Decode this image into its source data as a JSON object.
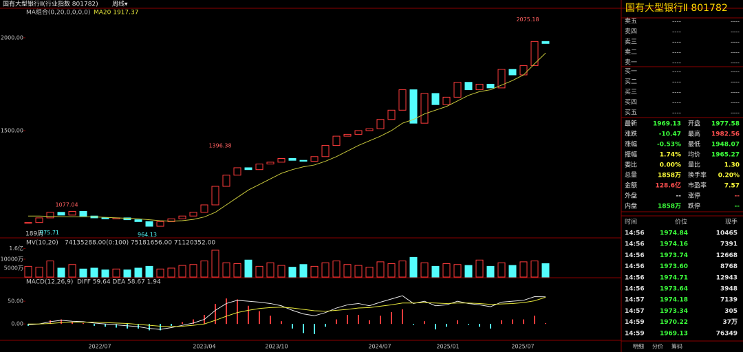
{
  "header": {
    "title": "国有大型银行Ⅱ(行业指数 801782)",
    "period": "周线▾"
  },
  "chart_data": [
    {
      "type": "candlestick",
      "legend": "MA组合(0,20,0,0,0,0)",
      "ma_label": "MA20 1917.37",
      "count_label": "189周",
      "close": [
        1005,
        1030,
        1060,
        1045,
        1065,
        1040,
        1030,
        1025,
        1030,
        1020,
        1010,
        985,
        1010,
        1025,
        1040,
        1060,
        1100,
        1200,
        1260,
        1300,
        1290,
        1320,
        1330,
        1350,
        1340,
        1335,
        1360,
        1420,
        1470,
        1480,
        1500,
        1510,
        1560,
        1610,
        1720,
        1540,
        1700,
        1640,
        1680,
        1760,
        1720,
        1750,
        1730,
        1830,
        1800,
        1850,
        1980,
        1969.13
      ],
      "ma20": [
        1040,
        1040,
        1038,
        1036,
        1035,
        1035,
        1035,
        1033,
        1030,
        1028,
        1025,
        1020,
        1015,
        1012,
        1015,
        1022,
        1035,
        1060,
        1100,
        1140,
        1180,
        1210,
        1240,
        1270,
        1290,
        1305,
        1315,
        1335,
        1360,
        1390,
        1420,
        1445,
        1470,
        1500,
        1540,
        1560,
        1590,
        1610,
        1630,
        1660,
        1690,
        1710,
        1720,
        1745,
        1770,
        1800,
        1860,
        1917.37
      ],
      "up_color": "#ff3c3c",
      "down_color": "#54fcfc",
      "ma_color": "#c8c83c",
      "ylim": [
        926,
        2159
      ],
      "yticks": [
        {
          "value": 2000,
          "label": "2000.00"
        },
        {
          "value": 1500,
          "label": "1500.00"
        }
      ],
      "annotations": [
        2075.18,
        1396.38,
        1077.04,
        975.71,
        964.13
      ]
    },
    {
      "type": "bar",
      "legend": "MV(10,20)",
      "stats": "74135288.00(0:100)  75181656.00  71120352.00",
      "values": [
        6000,
        5500,
        9000,
        5000,
        7000,
        4500,
        5000,
        4000,
        4500,
        4000,
        5000,
        6000,
        4500,
        5000,
        6500,
        7000,
        9000,
        15000,
        8000,
        7500,
        9500,
        6000,
        8000,
        6500,
        5500,
        7000,
        6000,
        8000,
        9000,
        7000,
        6500,
        5500,
        8500,
        7500,
        9000,
        11000,
        8000,
        6000,
        7500,
        7000,
        6500,
        9500,
        6000,
        8000,
        6500,
        8500,
        9000,
        7500
      ],
      "ylim": [
        0,
        21500
      ],
      "yticks": [
        {
          "value": 16000,
          "label": "1.6亿"
        },
        {
          "value": 10000,
          "label": "10000万"
        },
        {
          "value": 5000,
          "label": "5000万"
        }
      ]
    },
    {
      "type": "macd",
      "legend": "MACD(12,26,9)",
      "stats": "DIFF 59.64  DEA 58.67  1.94",
      "diff": [
        -2,
        0,
        5,
        8,
        6,
        5,
        2,
        0,
        -2,
        -4,
        -6,
        -10,
        -12,
        -8,
        -3,
        2,
        10,
        30,
        45,
        52,
        50,
        48,
        45,
        40,
        30,
        22,
        18,
        25,
        35,
        42,
        45,
        40,
        48,
        55,
        62,
        45,
        50,
        40,
        42,
        50,
        45,
        42,
        38,
        48,
        50,
        52,
        60,
        59.64
      ],
      "dea": [
        0,
        0,
        1,
        3,
        4,
        4,
        4,
        3,
        2,
        1,
        -1,
        -3,
        -5,
        -6,
        -5,
        -3,
        0,
        8,
        17,
        25,
        30,
        34,
        36,
        37,
        35,
        32,
        29,
        28,
        30,
        32,
        35,
        36,
        39,
        42,
        46,
        46,
        47,
        46,
        45,
        46,
        46,
        45,
        43,
        44,
        45,
        47,
        51,
        58.67
      ],
      "hist": [
        -4,
        0,
        8,
        10,
        4,
        2,
        -4,
        -6,
        -8,
        -10,
        -10,
        -14,
        -14,
        -4,
        4,
        10,
        20,
        44,
        56,
        54,
        40,
        28,
        18,
        6,
        -10,
        -20,
        -22,
        -6,
        10,
        20,
        20,
        8,
        18,
        26,
        32,
        -2,
        6,
        -12,
        -6,
        8,
        -2,
        -6,
        -10,
        8,
        10,
        10,
        18,
        1.94
      ],
      "diff_color": "#e8e8e8",
      "dea_color": "#e8e83c",
      "ylim": [
        -36,
        85
      ],
      "yticks": [
        {
          "value": 50,
          "label": "50.00"
        },
        {
          "value": 0,
          "label": "0.00"
        }
      ]
    }
  ],
  "x_axis": {
    "labels": [
      "2022/07",
      "2023/04",
      "2023/10",
      "2024/07",
      "2025/01",
      "2025/07"
    ]
  },
  "panel": {
    "title": "国有大型银行Ⅱ  801782",
    "book": [
      {
        "name": "卖五",
        "price": "----",
        "volume": "----"
      },
      {
        "name": "卖四",
        "price": "----",
        "volume": "----"
      },
      {
        "name": "卖三",
        "price": "----",
        "volume": "----"
      },
      {
        "name": "卖二",
        "price": "----",
        "volume": "----"
      },
      {
        "name": "卖一",
        "price": "----",
        "volume": "----"
      },
      {
        "name": "买一",
        "price": "----",
        "volume": "----"
      },
      {
        "name": "买二",
        "price": "----",
        "volume": "----"
      },
      {
        "name": "买三",
        "price": "----",
        "volume": "----"
      },
      {
        "name": "买四",
        "price": "----",
        "volume": "----"
      },
      {
        "name": "买五",
        "price": "----",
        "volume": "----"
      }
    ],
    "stats": [
      [
        {
          "label": "最新",
          "value": "1969.13",
          "color": "#3cff3c"
        },
        {
          "label": "开盘",
          "value": "1977.58",
          "color": "#3cff3c"
        }
      ],
      [
        {
          "label": "涨跌",
          "value": "-10.47",
          "color": "#3cff3c"
        },
        {
          "label": "最高",
          "value": "1982.56",
          "color": "#ff5050"
        }
      ],
      [
        {
          "label": "涨幅",
          "value": "-0.53%",
          "color": "#3cff3c"
        },
        {
          "label": "最低",
          "value": "1948.07",
          "color": "#3cff3c"
        }
      ],
      [
        {
          "label": "振幅",
          "value": "1.74%",
          "color": "#ffff3c"
        },
        {
          "label": "均价",
          "value": "1965.27",
          "color": "#3cff3c"
        }
      ],
      [
        {
          "label": "委比",
          "value": "0.00%",
          "color": "#ffff3c"
        },
        {
          "label": "量比",
          "value": "1.30",
          "color": "#ffff3c"
        }
      ],
      [
        {
          "label": "总量",
          "value": "1858万",
          "color": "#ffff3c"
        },
        {
          "label": "换手率",
          "value": "0.20%",
          "color": "#ffff3c"
        }
      ],
      [
        {
          "label": "金额",
          "value": "128.6亿",
          "color": "#ff5050"
        },
        {
          "label": "市盈率",
          "value": "7.57",
          "color": "#ffff3c"
        }
      ],
      [
        {
          "label": "外盘",
          "value": "--",
          "color": "#e0e0e0"
        },
        {
          "label": "涨停",
          "value": "--",
          "color": "#ff5050"
        }
      ],
      [
        {
          "label": "内盘",
          "value": "1858万",
          "color": "#3cff3c"
        },
        {
          "label": "跌停",
          "value": "--",
          "color": "#3cff3c"
        }
      ]
    ],
    "trades": {
      "headers": [
        "时间",
        "价位",
        "现手"
      ],
      "rows": [
        [
          "14:56",
          "1974.84",
          "10465"
        ],
        [
          "14:56",
          "1974.16",
          "7391"
        ],
        [
          "14:56",
          "1973.74",
          "12668"
        ],
        [
          "14:56",
          "1973.60",
          "8768"
        ],
        [
          "14:56",
          "1974.71",
          "12943"
        ],
        [
          "14:56",
          "1973.64",
          "3948"
        ],
        [
          "14:57",
          "1974.18",
          "7139"
        ],
        [
          "14:57",
          "1973.34",
          "305"
        ],
        [
          "14:59",
          "1970.22",
          "37万"
        ],
        [
          "14:59",
          "1969.13",
          "76349"
        ]
      ]
    },
    "tabs": [
      "明细",
      "分价",
      "筹码"
    ]
  }
}
